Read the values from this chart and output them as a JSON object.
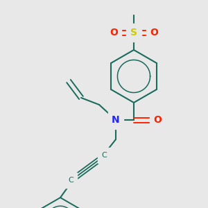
{
  "bg_color": "#e8e8e8",
  "ring_color": "#1a6b5c",
  "S_color": "#cccc00",
  "O_color": "#ff2200",
  "N_color": "#2222ff",
  "C_color": "#1a6b5c",
  "line_width": 1.5,
  "figsize": [
    3.0,
    3.0
  ],
  "dpi": 100,
  "xlim": [
    0,
    300
  ],
  "ylim": [
    0,
    300
  ]
}
